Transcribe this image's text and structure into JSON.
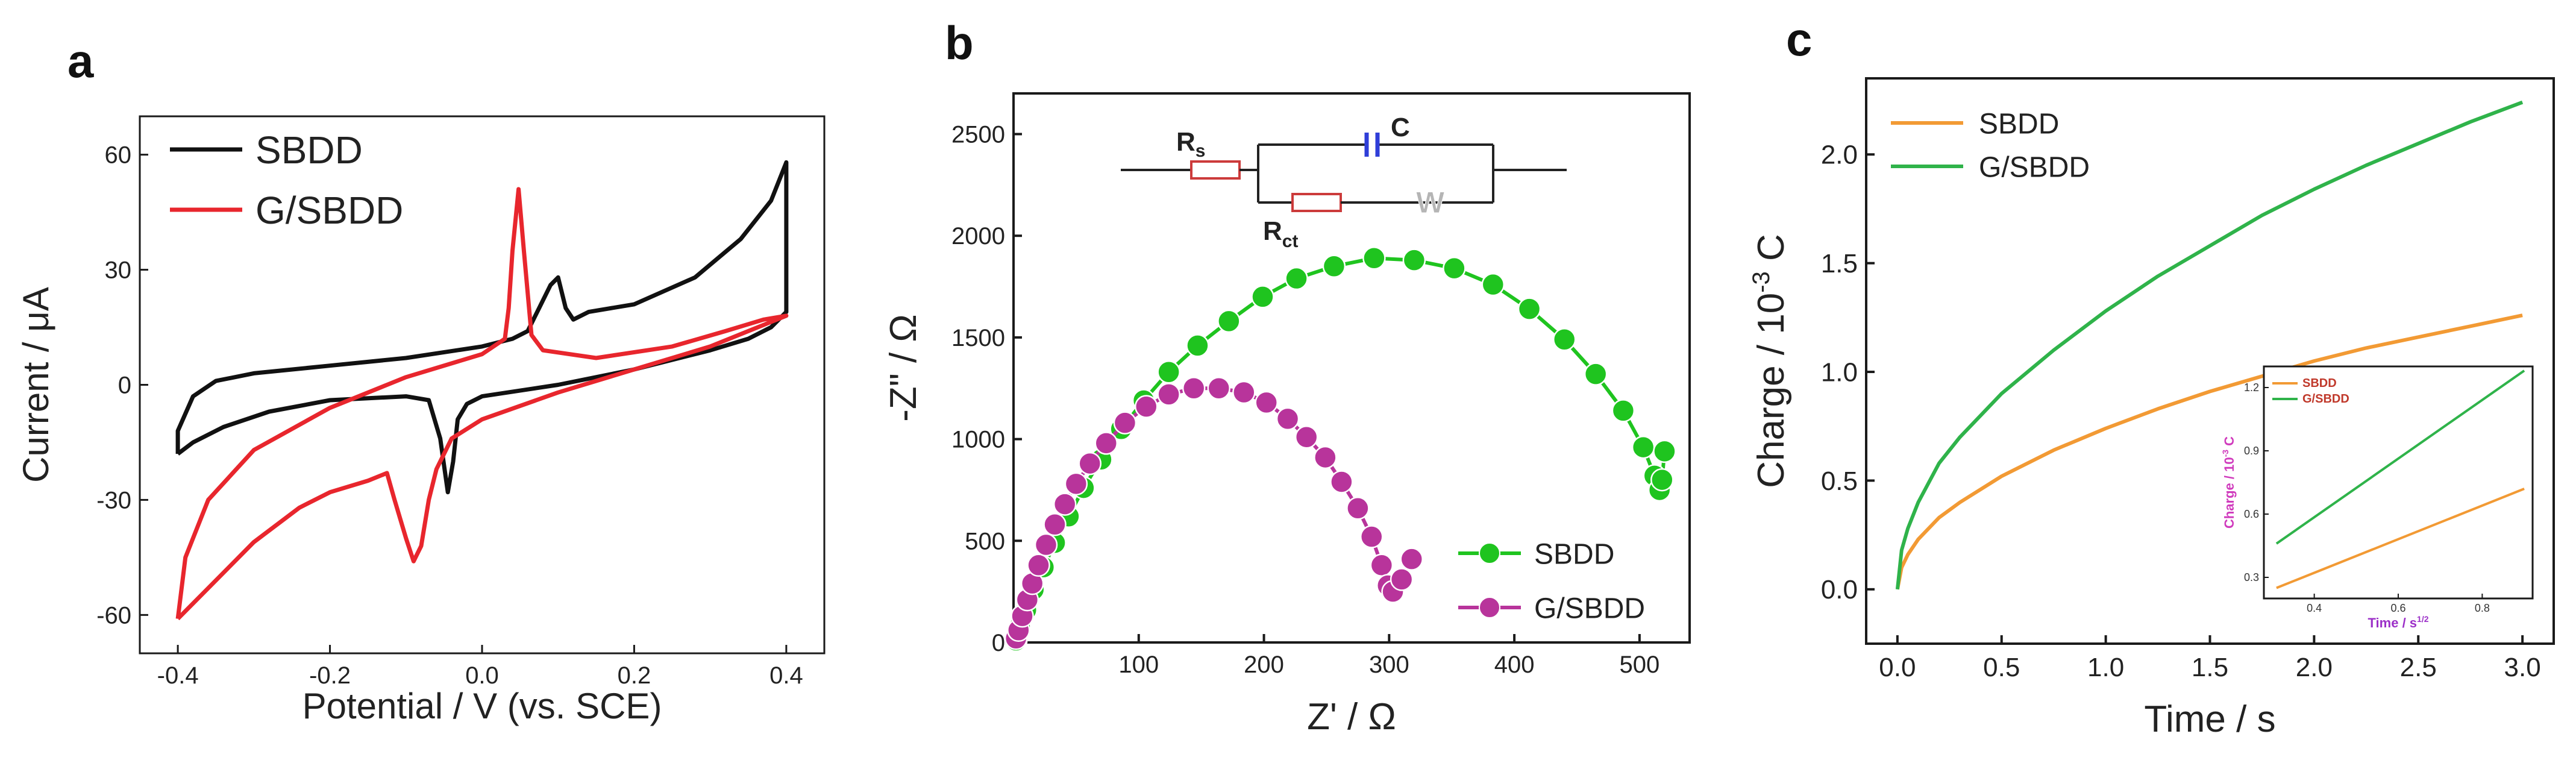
{
  "figure": {
    "panel_labels": [
      "a",
      "b",
      "c"
    ]
  },
  "colors": {
    "black": "#111111",
    "red": "#e8262d",
    "green": "#1fc41f",
    "green_line": "#2fb34a",
    "magenta": "#b8349b",
    "orange": "#f29a34",
    "inset_ylabel": "#d03bbd",
    "inset_xlabel": "#9c30c8",
    "circuit_red": "#cc3b3b",
    "circuit_blue": "#2f3ed8",
    "circuit_gray": "#b5b5b5"
  },
  "chart_data": [
    {
      "panel": "a",
      "type": "line",
      "title": "",
      "xlabel": "Potential / V (vs. SCE)",
      "ylabel": "Current / μA",
      "xlim": [
        -0.45,
        0.45
      ],
      "ylim": [
        -70,
        70
      ],
      "xticks": [
        -0.4,
        -0.2,
        0.0,
        0.2,
        0.4
      ],
      "xtick_labels": [
        "-0.4",
        "-0.2",
        "0.0",
        "0.2",
        "0.4"
      ],
      "yticks": [
        -60,
        -30,
        0,
        30,
        60
      ],
      "ytick_labels": [
        "-60",
        "-30",
        "0",
        "30",
        "60"
      ],
      "legend": "top-left",
      "series": [
        {
          "name": "SBDD",
          "color": "#111111",
          "points": [
            [
              -0.4,
              -18
            ],
            [
              -0.38,
              -15
            ],
            [
              -0.34,
              -11
            ],
            [
              -0.28,
              -7
            ],
            [
              -0.2,
              -4
            ],
            [
              -0.1,
              -3
            ],
            [
              -0.07,
              -4
            ],
            [
              -0.055,
              -14
            ],
            [
              -0.045,
              -28
            ],
            [
              -0.038,
              -20
            ],
            [
              -0.032,
              -9
            ],
            [
              -0.02,
              -5
            ],
            [
              0.0,
              -3
            ],
            [
              0.1,
              0
            ],
            [
              0.2,
              4
            ],
            [
              0.3,
              9
            ],
            [
              0.35,
              12
            ],
            [
              0.38,
              15
            ],
            [
              0.4,
              19
            ],
            [
              0.4,
              58
            ],
            [
              0.38,
              48
            ],
            [
              0.34,
              38
            ],
            [
              0.28,
              28
            ],
            [
              0.2,
              21
            ],
            [
              0.14,
              19
            ],
            [
              0.12,
              17
            ],
            [
              0.11,
              20
            ],
            [
              0.1,
              28
            ],
            [
              0.09,
              26
            ],
            [
              0.075,
              20
            ],
            [
              0.06,
              14
            ],
            [
              0.04,
              12
            ],
            [
              0.0,
              10
            ],
            [
              -0.1,
              7
            ],
            [
              -0.2,
              5
            ],
            [
              -0.3,
              3
            ],
            [
              -0.35,
              1
            ],
            [
              -0.38,
              -3
            ],
            [
              -0.4,
              -12
            ],
            [
              -0.4,
              -18
            ]
          ]
        },
        {
          "name": "G/SBDD",
          "color": "#e8262d",
          "points": [
            [
              -0.4,
              -61
            ],
            [
              -0.36,
              -53
            ],
            [
              -0.3,
              -41
            ],
            [
              -0.24,
              -32
            ],
            [
              -0.2,
              -28
            ],
            [
              -0.15,
              -25
            ],
            [
              -0.125,
              -23
            ],
            [
              -0.115,
              -30
            ],
            [
              -0.1,
              -40
            ],
            [
              -0.09,
              -46
            ],
            [
              -0.08,
              -42
            ],
            [
              -0.07,
              -30
            ],
            [
              -0.06,
              -22
            ],
            [
              -0.04,
              -14
            ],
            [
              0.0,
              -9
            ],
            [
              0.1,
              -2
            ],
            [
              0.2,
              4
            ],
            [
              0.3,
              10
            ],
            [
              0.35,
              14
            ],
            [
              0.4,
              18
            ],
            [
              0.4,
              18
            ],
            [
              0.37,
              17
            ],
            [
              0.32,
              14
            ],
            [
              0.25,
              10
            ],
            [
              0.15,
              7
            ],
            [
              0.08,
              9
            ],
            [
              0.065,
              13
            ],
            [
              0.055,
              35
            ],
            [
              0.048,
              51
            ],
            [
              0.04,
              35
            ],
            [
              0.035,
              20
            ],
            [
              0.03,
              12
            ],
            [
              0.0,
              8
            ],
            [
              -0.1,
              2
            ],
            [
              -0.2,
              -6
            ],
            [
              -0.3,
              -17
            ],
            [
              -0.36,
              -30
            ],
            [
              -0.39,
              -45
            ],
            [
              -0.4,
              -61
            ]
          ]
        }
      ]
    },
    {
      "panel": "b",
      "type": "scatter",
      "title": "",
      "xlabel": "Z' / Ω",
      "ylabel": "-Z\" / Ω",
      "xlim": [
        0,
        540
      ],
      "ylim": [
        0,
        2700
      ],
      "xticks": [
        100,
        200,
        300,
        400,
        500
      ],
      "xtick_labels": [
        "100",
        "200",
        "300",
        "400",
        "500"
      ],
      "yticks": [
        0,
        500,
        1000,
        1500,
        2000,
        2500
      ],
      "ytick_labels": [
        "0",
        "500",
        "1000",
        "1500",
        "2000",
        "2500"
      ],
      "legend": "bottom-right",
      "inset_circuit": {
        "labels": {
          "rs_main": "R",
          "rs_sub": "s",
          "rct_main": "R",
          "rct_sub": "ct",
          "c": "C",
          "w": "W"
        }
      },
      "series": [
        {
          "name": "SBDD",
          "color": "#1fc41f",
          "x": [
            2,
            5,
            10,
            16,
            24,
            33,
            44,
            56,
            70,
            86,
            104,
            124,
            147,
            172,
            199,
            226,
            256,
            288,
            320,
            352,
            383,
            412,
            440,
            465,
            487,
            503,
            512,
            516,
            518,
            520
          ],
          "y": [
            10,
            80,
            160,
            260,
            370,
            490,
            620,
            760,
            900,
            1050,
            1190,
            1330,
            1460,
            1580,
            1700,
            1790,
            1850,
            1890,
            1880,
            1840,
            1760,
            1640,
            1490,
            1320,
            1140,
            960,
            820,
            750,
            800,
            940
          ]
        },
        {
          "name": "G/SBDD",
          "color": "#b8349b",
          "x": [
            2,
            4,
            7,
            11,
            15,
            20,
            26,
            33,
            41,
            50,
            61,
            74,
            89,
            106,
            124,
            144,
            164,
            184,
            202,
            219,
            234,
            249,
            262,
            275,
            286,
            294,
            299,
            303,
            310,
            318
          ],
          "y": [
            20,
            60,
            130,
            210,
            290,
            380,
            480,
            580,
            680,
            780,
            880,
            980,
            1080,
            1160,
            1220,
            1250,
            1250,
            1230,
            1180,
            1100,
            1010,
            910,
            790,
            660,
            520,
            380,
            280,
            250,
            310,
            410
          ]
        }
      ]
    },
    {
      "panel": "c",
      "type": "line",
      "title": "",
      "xlabel": "Time / s",
      "ylabel_parts": [
        "Charge / 10",
        "-3",
        " C"
      ],
      "xlim": [
        -0.15,
        3.15
      ],
      "ylim": [
        -0.25,
        2.35
      ],
      "xticks": [
        0.0,
        0.5,
        1.0,
        1.5,
        2.0,
        2.5,
        3.0
      ],
      "xtick_labels": [
        "0.0",
        "0.5",
        "1.0",
        "1.5",
        "2.0",
        "2.5",
        "3.0"
      ],
      "yticks": [
        0.0,
        0.5,
        1.0,
        1.5,
        2.0
      ],
      "ytick_labels": [
        "0.0",
        "0.5",
        "1.0",
        "1.5",
        "2.0"
      ],
      "legend": "top-left",
      "series": [
        {
          "name": "SBDD",
          "color": "#f29a34",
          "x": [
            0.0,
            0.02,
            0.05,
            0.1,
            0.2,
            0.3,
            0.5,
            0.75,
            1.0,
            1.25,
            1.5,
            1.75,
            2.0,
            2.25,
            2.5,
            2.75,
            3.0
          ],
          "y": [
            0.0,
            0.1,
            0.16,
            0.23,
            0.33,
            0.4,
            0.52,
            0.64,
            0.74,
            0.83,
            0.91,
            0.98,
            1.05,
            1.11,
            1.16,
            1.21,
            1.26
          ]
        },
        {
          "name": "G/SBDD",
          "color": "#2fb34a",
          "x": [
            0.0,
            0.02,
            0.05,
            0.1,
            0.2,
            0.3,
            0.5,
            0.75,
            1.0,
            1.25,
            1.5,
            1.75,
            2.0,
            2.25,
            2.5,
            2.75,
            3.0
          ],
          "y": [
            0.0,
            0.18,
            0.28,
            0.4,
            0.58,
            0.7,
            0.9,
            1.1,
            1.28,
            1.44,
            1.58,
            1.72,
            1.84,
            1.95,
            2.05,
            2.15,
            2.24
          ]
        }
      ],
      "inset": {
        "type": "line",
        "xlabel_parts": [
          "Time / s",
          "1/2"
        ],
        "ylabel_parts": [
          "Charge / 10",
          "-3",
          " C"
        ],
        "xlim": [
          0.28,
          0.92
        ],
        "ylim": [
          0.2,
          1.3
        ],
        "xticks": [
          0.4,
          0.6,
          0.8
        ],
        "xtick_labels": [
          "0.4",
          "0.6",
          "0.8"
        ],
        "yticks": [
          0.3,
          0.6,
          0.9,
          1.2
        ],
        "ytick_labels": [
          "0.3",
          "0.6",
          "0.9",
          "1.2"
        ],
        "legend": "top-left",
        "series": [
          {
            "name": "SBDD",
            "color": "#f29a34",
            "x": [
              0.31,
              0.9
            ],
            "y": [
              0.25,
              0.72
            ]
          },
          {
            "name": "G/SBDD",
            "color": "#2fb34a",
            "x": [
              0.31,
              0.9
            ],
            "y": [
              0.46,
              1.28
            ]
          }
        ]
      }
    }
  ]
}
